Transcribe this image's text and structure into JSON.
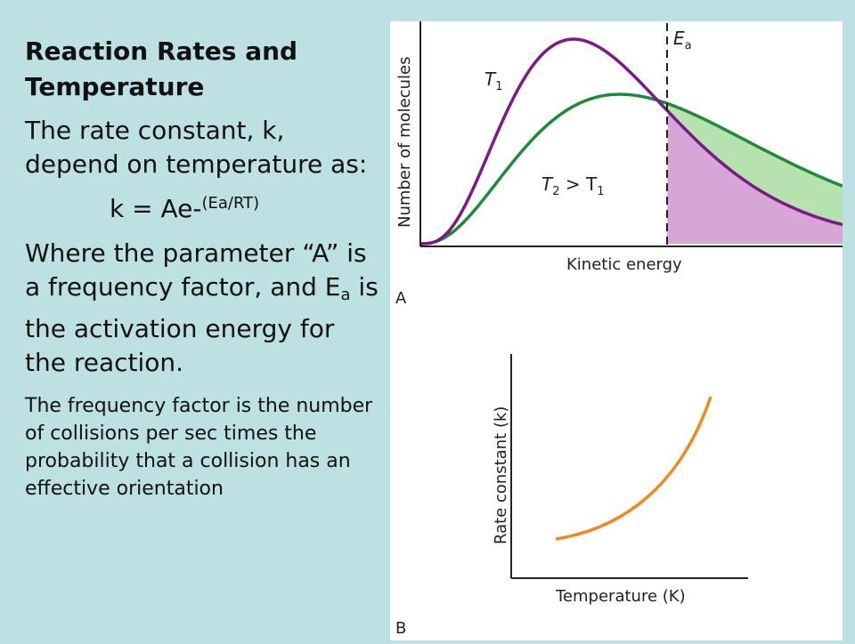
{
  "slide": {
    "title": "Reaction Rates and Temperature",
    "para1": "The rate constant, k, depend on temperature as:",
    "formula_base": "k = Ae-",
    "formula_exp": "(Ea/RT)",
    "para2_part1": "Where the parameter “A” is a frequency factor, and E",
    "para2_sub": "a",
    "para2_part2": " is the activation energy for the reaction.",
    "note": "The frequency factor is the number of collisions per sec times the probability that a collision has an effective orientation"
  },
  "chart_data": [
    {
      "type": "line",
      "panel_label": "A",
      "xlabel": "Kinetic energy",
      "ylabel": "Number of molecules",
      "threshold_label": "E",
      "threshold_sub": "a",
      "series": [
        {
          "name": "T1",
          "label_main": "T",
          "label_sub": "1",
          "color": "#7b1a87"
        },
        {
          "name": "T2 > T1",
          "label_main": "T",
          "label_sub": "2",
          "label_mid": " > T",
          "label_sub2": "1",
          "color": "#1f8a3a"
        }
      ],
      "fill_colors": {
        "T2": "#b6e2b0",
        "T1": "#d8a6d6"
      }
    },
    {
      "type": "line",
      "panel_label": "B",
      "xlabel": "Temperature (K)",
      "ylabel": "Rate constant (k)",
      "series": [
        {
          "name": "k",
          "color": "#f08a1c"
        }
      ]
    }
  ]
}
